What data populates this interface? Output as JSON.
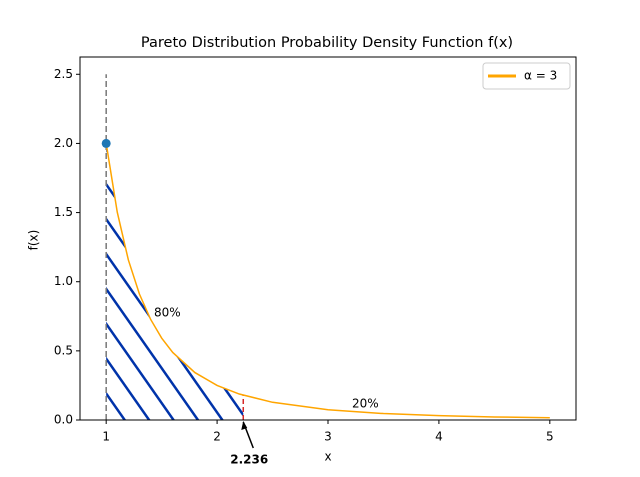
{
  "chart_data": {
    "type": "line",
    "title": "Pareto Distribution Probability Density Function f(x)",
    "x_label": "x",
    "y_label": "f(x)",
    "x": [
      1,
      1.1,
      1.2,
      1.3,
      1.4,
      1.5,
      1.6,
      1.8,
      2,
      2.2,
      2.5,
      3,
      3.5,
      4,
      4.5,
      5
    ],
    "series": [
      {
        "name": "α = 3",
        "color": "#ffa500",
        "values": [
          2,
          1.5026,
          1.1574,
          0.9103,
          0.7289,
          0.5926,
          0.4883,
          0.3429,
          0.25,
          0.1878,
          0.128,
          0.0741,
          0.0466,
          0.03125,
          0.0219,
          0.016
        ]
      }
    ],
    "point": {
      "x": 1,
      "y": 2
    },
    "vline": {
      "x": 1,
      "ymax": 2.5
    },
    "threshold": {
      "value": 2.236,
      "label": "2.236"
    },
    "shaded_label": "80%",
    "tail_label": "20%",
    "shade_color": "#0033aa",
    "xlim": [
      0.8,
      5.2
    ],
    "ylim": [
      0,
      2.625
    ],
    "xticks": [
      1,
      2,
      3,
      4,
      5
    ],
    "yticks": [
      {
        "value": 0,
        "label": "0.0"
      },
      {
        "value": 0.5,
        "label": "0.5"
      },
      {
        "value": 1,
        "label": "1.0"
      },
      {
        "value": 1.5,
        "label": "1.5"
      },
      {
        "value": 2,
        "label": "2.0"
      },
      {
        "value": 2.5,
        "label": "2.5"
      }
    ],
    "legend": "upper right"
  }
}
